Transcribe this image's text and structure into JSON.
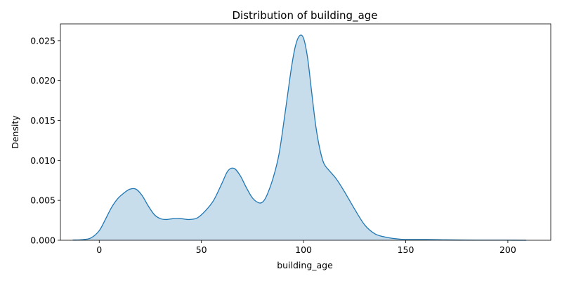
{
  "chart_data": {
    "type": "area",
    "title": "Distribution of building_age",
    "xlabel": "building_age",
    "ylabel": "Density",
    "xlim": [
      -19,
      221
    ],
    "ylim": [
      0,
      0.0271
    ],
    "xticks": [
      0,
      50,
      100,
      150,
      200
    ],
    "xtick_labels": [
      "0",
      "50",
      "100",
      "150",
      "200"
    ],
    "yticks": [
      0,
      0.005,
      0.01,
      0.015,
      0.02,
      0.025
    ],
    "ytick_labels": [
      "0.000",
      "0.005",
      "0.010",
      "0.015",
      "0.020",
      "0.025"
    ],
    "grid": false,
    "legend": false,
    "line_color": "#1f77b4",
    "fill_color": "#1f77b4",
    "fill_alpha": 0.25,
    "series": [
      {
        "x": [
          -13,
          -8,
          -4,
          0,
          3,
          6,
          9,
          12,
          15,
          18,
          21,
          24,
          27,
          30,
          33,
          36,
          40,
          44,
          48,
          52,
          56,
          60,
          63,
          66,
          69,
          72,
          75,
          78,
          80,
          82,
          85,
          88,
          91,
          94,
          96,
          98,
          100,
          102,
          104,
          106,
          108,
          110,
          113,
          116,
          120,
          125,
          130,
          135,
          140,
          145,
          150,
          155,
          160,
          165,
          170,
          180,
          190,
          200,
          209
        ],
        "y": [
          2e-05,
          8e-05,
          0.0003,
          0.0012,
          0.0026,
          0.0041,
          0.0052,
          0.0059,
          0.0064,
          0.0064,
          0.0056,
          0.0043,
          0.0032,
          0.0027,
          0.0026,
          0.0027,
          0.0027,
          0.0026,
          0.0028,
          0.0037,
          0.005,
          0.0071,
          0.0087,
          0.009,
          0.0081,
          0.0066,
          0.0053,
          0.0047,
          0.0048,
          0.0056,
          0.0077,
          0.0108,
          0.016,
          0.0215,
          0.0243,
          0.0256,
          0.0253,
          0.0228,
          0.0185,
          0.0143,
          0.0114,
          0.0096,
          0.0086,
          0.0077,
          0.0061,
          0.0039,
          0.0019,
          0.0008,
          0.0004,
          0.0002,
          0.0001,
          0.0001,
          0.0001,
          8e-05,
          5e-05,
          2e-05,
          1e-05,
          1e-05,
          0
        ]
      }
    ]
  }
}
